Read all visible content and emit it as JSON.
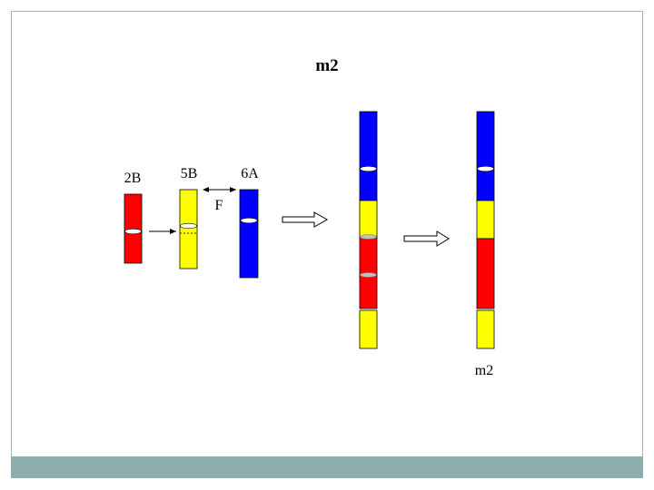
{
  "title": "m2",
  "labels": {
    "chrom_2b": "2B",
    "chrom_5b": "5B",
    "chrom_6a": "6A",
    "arrow_f": "F",
    "result": "m2"
  },
  "colors": {
    "red": "#ff0000",
    "yellow": "#ffff00",
    "blue": "#0000ff",
    "footer": "#8eaeae",
    "frame": "#9fb5b5"
  }
}
